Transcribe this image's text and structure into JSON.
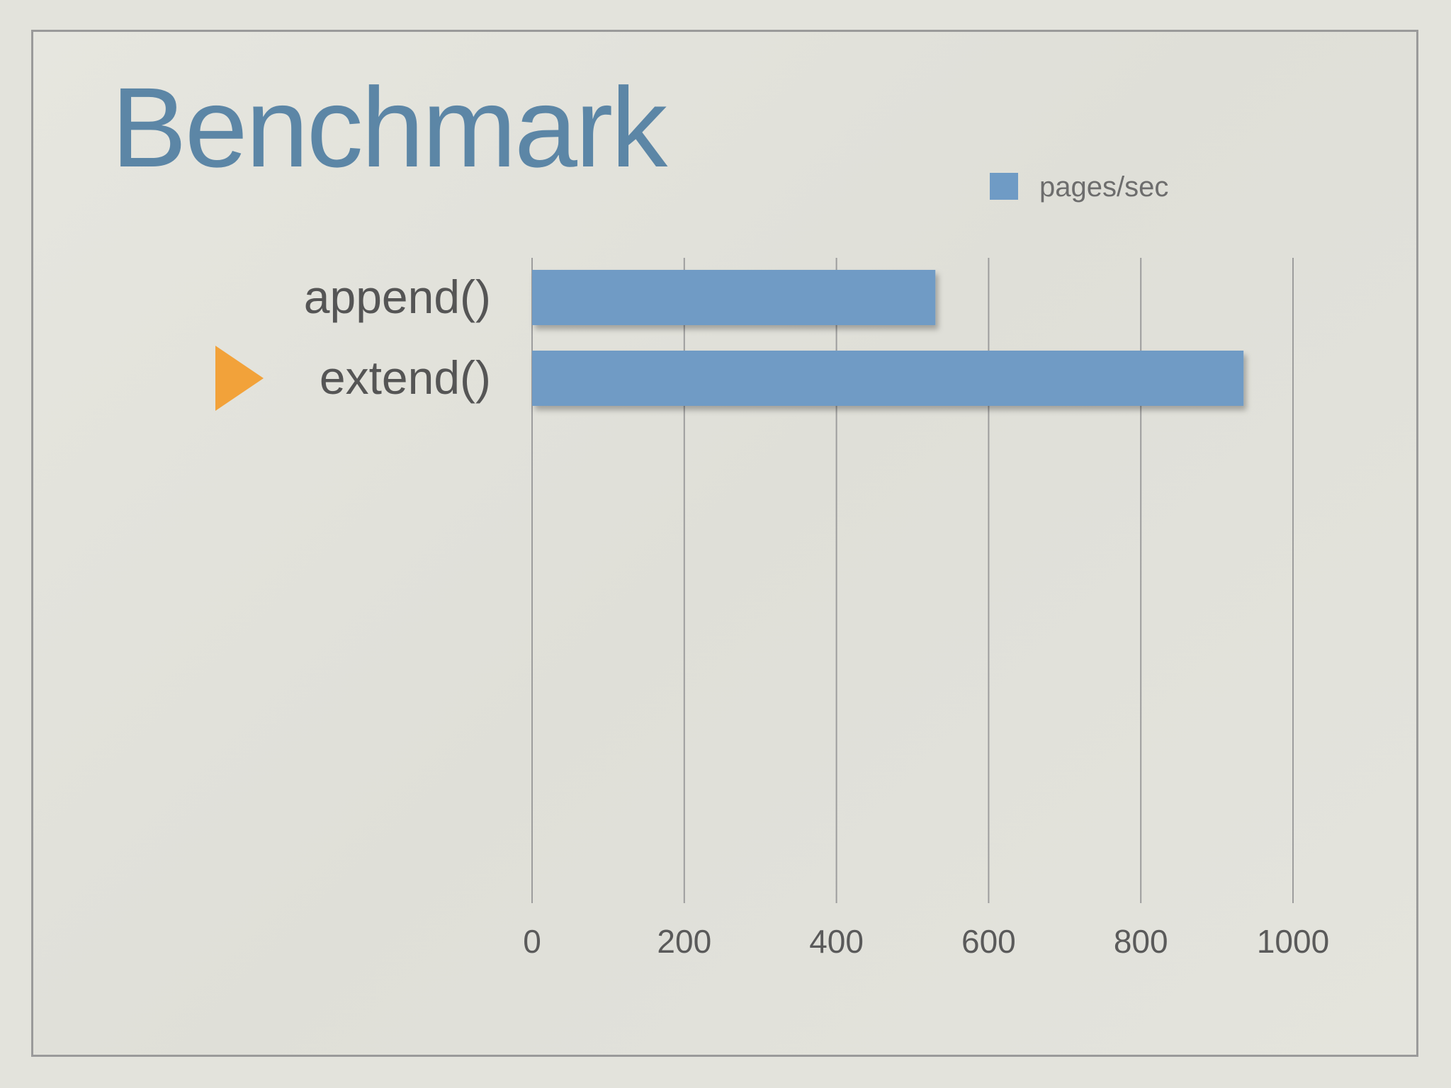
{
  "slide": {
    "title": "Benchmark"
  },
  "colors": {
    "bar": "#6f9bc5",
    "title": "#5c86a6",
    "pointer": "#f2a23a",
    "background": "#e3e3dc"
  },
  "pointer_icon": "orange-triangle-pointer",
  "highlighted_category": "extend()",
  "chart_data": {
    "type": "bar",
    "orientation": "horizontal",
    "categories": [
      "append()",
      "extend()"
    ],
    "series": [
      {
        "name": "pages/sec",
        "values": [
          530,
          935
        ]
      }
    ],
    "xlim": [
      0,
      1000
    ],
    "xticks": [
      0,
      200,
      400,
      600,
      800,
      1000
    ],
    "xlabel": "",
    "ylabel": "",
    "grid": "vertical",
    "legend_position": "top-right"
  }
}
